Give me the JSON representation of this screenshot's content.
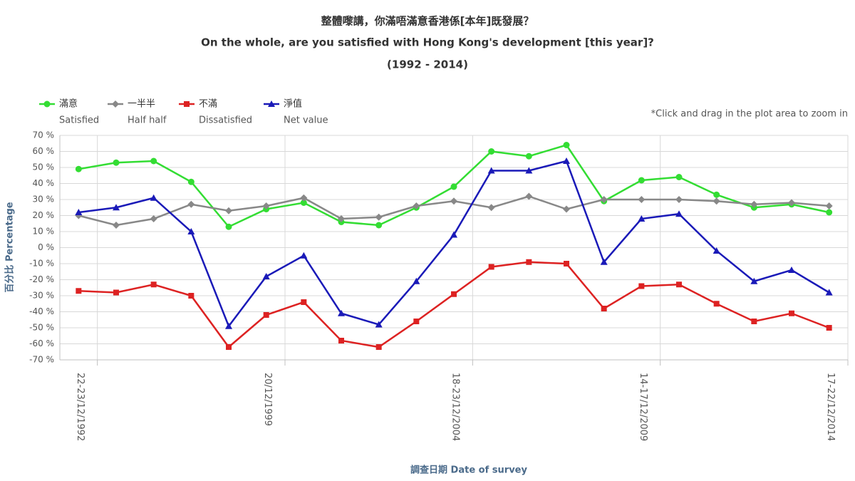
{
  "chart_data": {
    "type": "line",
    "title": "整體嚟講，你滿唔滿意香港係[本年]既發展？",
    "subtitle": "On the whole, are you satisfied with Hong Kong's development [this year]?",
    "period": "(1992 - 2014)",
    "note": "*Click and drag in the plot area to zoom in",
    "ylabel": "百分比 Percentage",
    "xlabel": "調查日期 Date of survey",
    "categories": [
      "22-23/12/1992",
      null,
      null,
      null,
      null,
      "20/12/1999",
      null,
      null,
      null,
      null,
      "18-23/12/2004",
      null,
      null,
      null,
      null,
      "14-17/12/2009",
      null,
      null,
      null,
      null,
      "17-22/12/2014"
    ],
    "ylim": [
      -70,
      70
    ],
    "yticks": [
      {
        "value": -70,
        "label": "-70 %"
      },
      {
        "value": -60,
        "label": "-60 %"
      },
      {
        "value": -50,
        "label": "-50 %"
      },
      {
        "value": -40,
        "label": "-40 %"
      },
      {
        "value": -30,
        "label": "-30 %"
      },
      {
        "value": -20,
        "label": "-20 %"
      },
      {
        "value": -10,
        "label": "-10 %"
      },
      {
        "value": 0,
        "label": "0 %"
      },
      {
        "value": 10,
        "label": "10 %"
      },
      {
        "value": 20,
        "label": "20 %"
      },
      {
        "value": 30,
        "label": "30 %"
      },
      {
        "value": 40,
        "label": "40 %"
      },
      {
        "value": 50,
        "label": "50 %"
      },
      {
        "value": 60,
        "label": "60 %"
      },
      {
        "value": 70,
        "label": "70 %"
      }
    ],
    "grid": true,
    "series": [
      {
        "name": "滿意",
        "name_en": "Satisfied",
        "color": "#33dd33",
        "marker": "circle",
        "values": [
          49,
          53,
          54,
          41,
          13,
          24,
          28,
          16,
          14,
          25,
          38,
          60,
          57,
          64,
          29,
          42,
          44,
          33,
          25,
          27,
          22
        ]
      },
      {
        "name": "一半半",
        "name_en": "Half half",
        "color": "#888888",
        "marker": "diamond",
        "values": [
          20,
          14,
          18,
          27,
          23,
          26,
          31,
          18,
          19,
          26,
          29,
          25,
          32,
          24,
          30,
          30,
          30,
          29,
          27,
          28,
          26
        ]
      },
      {
        "name": "不滿",
        "name_en": "Dissatisfied",
        "color": "#dd2222",
        "marker": "square",
        "values": [
          -27,
          -28,
          -23,
          -30,
          -62,
          -42,
          -34,
          -58,
          -62,
          -46,
          -29,
          -12,
          -9,
          -10,
          -38,
          -24,
          -23,
          -35,
          -46,
          -41,
          -50
        ]
      },
      {
        "name": "淨值",
        "name_en": "Net value",
        "color": "#1a1ab8",
        "marker": "triangle",
        "values": [
          22,
          25,
          31,
          10,
          -49,
          -18,
          -5,
          -41,
          -48,
          -21,
          8,
          48,
          48,
          54,
          -9,
          18,
          21,
          -2,
          -21,
          -14,
          -28
        ]
      }
    ]
  }
}
